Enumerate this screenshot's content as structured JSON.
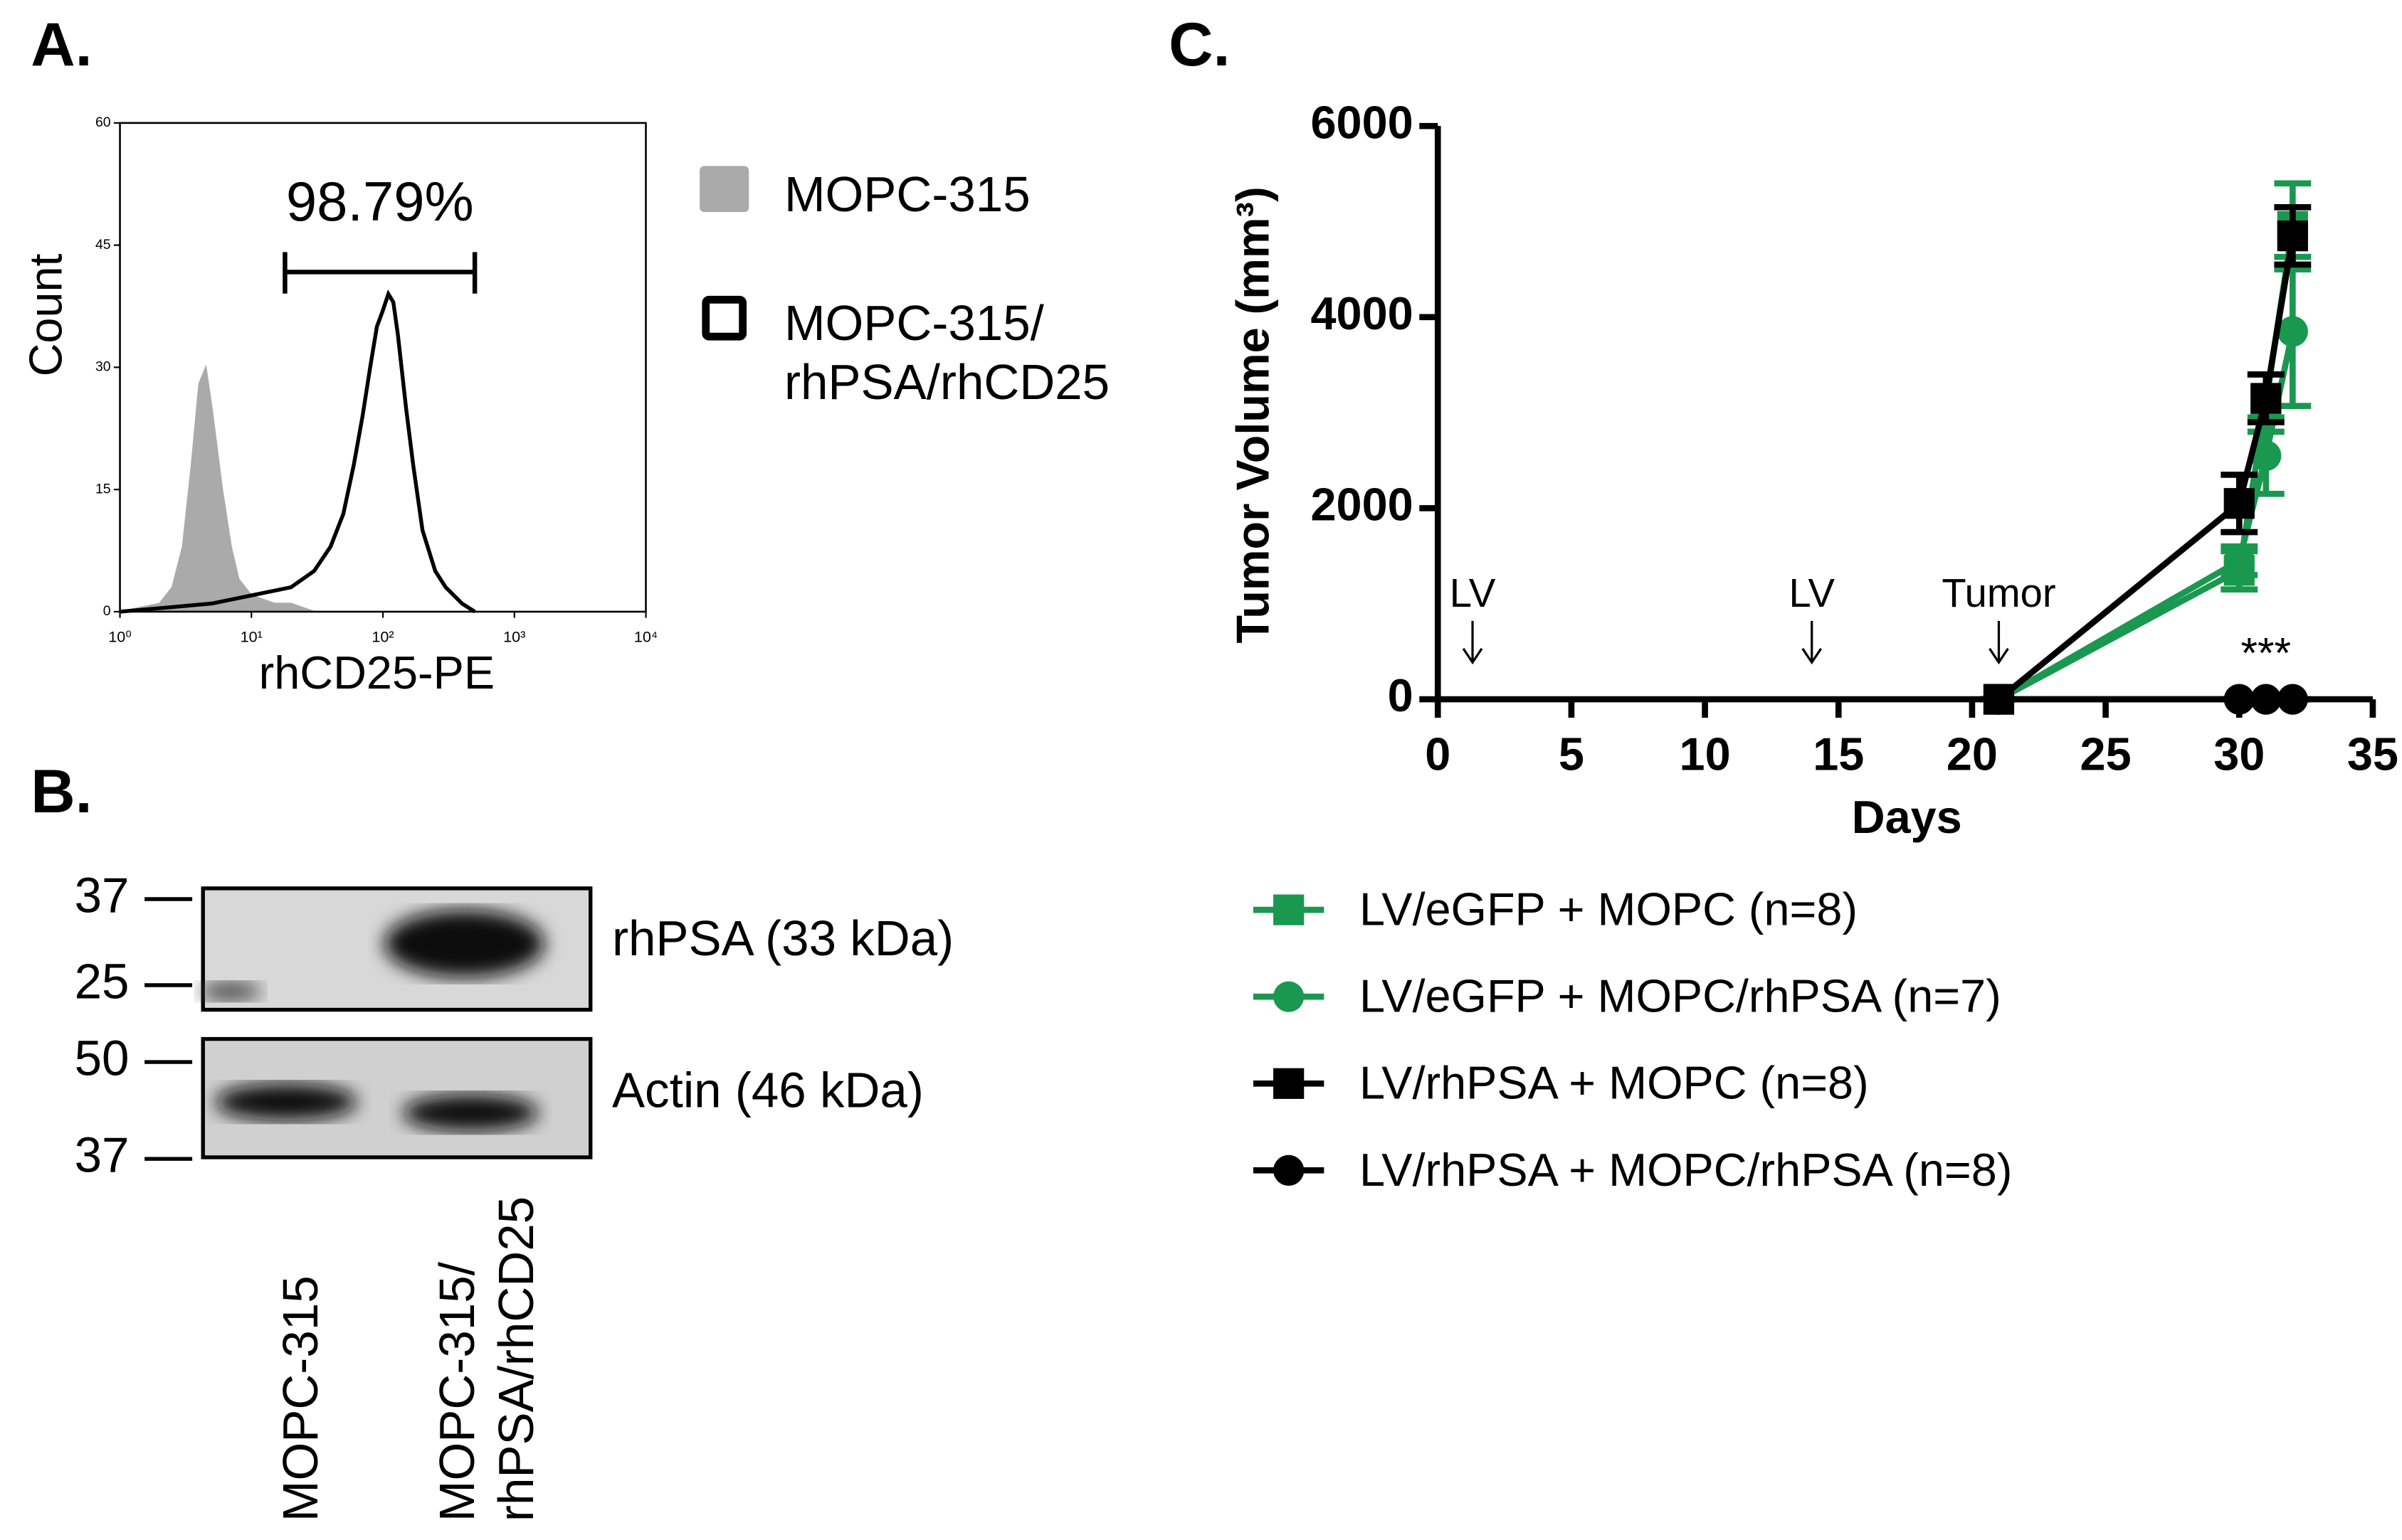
{
  "panel_labels": [
    "A.",
    "B.",
    "C."
  ],
  "chart_data": [
    {
      "type": "histogram-overlay",
      "x_label": "rhCD25-PE",
      "y_label": "Count",
      "log_x": true,
      "xlim": [
        1,
        10000
      ],
      "xticks": [
        {
          "value": 1,
          "label": "10⁰"
        },
        {
          "value": 10,
          "label": "10¹"
        },
        {
          "value": 100,
          "label": "10²"
        },
        {
          "value": 1000,
          "label": "10³"
        },
        {
          "value": 10000,
          "label": "10⁴"
        }
      ],
      "ylim": [
        0,
        60
      ],
      "yticks": [
        0,
        15,
        30,
        45,
        60
      ],
      "gate": [
        18,
        500
      ],
      "gate_label": "98.79%",
      "series": [
        {
          "name": "MOPC-315",
          "color": "#aaaaaa",
          "filled": true,
          "x": [
            1,
            2,
            2.5,
            3,
            3.5,
            4,
            4.5,
            5,
            6,
            7,
            8,
            10,
            15,
            20,
            30
          ],
          "values": [
            0,
            1,
            3,
            8,
            18,
            28,
            30,
            25,
            15,
            8,
            4,
            2,
            1,
            1,
            0
          ]
        },
        {
          "name": "MOPC-315/\nrhPSA/rhCD25",
          "color": "#000000",
          "filled": false,
          "x": [
            1,
            5,
            10,
            20,
            30,
            40,
            50,
            60,
            70,
            80,
            90,
            100,
            110,
            120,
            130,
            150,
            170,
            200,
            250,
            300,
            400,
            500
          ],
          "values": [
            0,
            1,
            2,
            3,
            5,
            8,
            12,
            18,
            24,
            30,
            35,
            37,
            39,
            38,
            34,
            25,
            18,
            10,
            5,
            3,
            1,
            0
          ]
        }
      ]
    },
    {
      "type": "line",
      "x_label": "Days",
      "y_label": "Tumor Volume (mm³)",
      "xlim": [
        0,
        35
      ],
      "xticks": [
        0,
        5,
        10,
        15,
        20,
        25,
        30,
        35
      ],
      "ylim": [
        0,
        6000
      ],
      "yticks": [
        0,
        2000,
        4000,
        6000
      ],
      "annotations": [
        {
          "text": "LV",
          "x": 1.3
        },
        {
          "text": "LV",
          "x": 14
        },
        {
          "text": "Tumor",
          "x": 21
        }
      ],
      "significance": {
        "text": "***",
        "x": 31
      },
      "series": [
        {
          "name": "LV/eGFP + MOPC (n=8)",
          "color": "#1a9850",
          "marker": "square",
          "x": [
            21,
            30,
            31,
            32
          ],
          "values": [
            0,
            1350,
            3100,
            4950
          ],
          "errors": [
            0,
            200,
            300,
            450
          ]
        },
        {
          "name": "LV/eGFP + MOPC/rhPSA (n=7)",
          "color": "#1a9850",
          "marker": "circle",
          "x": [
            21,
            30,
            31,
            32
          ],
          "values": [
            0,
            1450,
            2550,
            3850
          ],
          "errors": [
            0,
            150,
            400,
            780
          ]
        },
        {
          "name": "LV/rhPSA + MOPC (n=8)",
          "color": "#000000",
          "marker": "square",
          "x": [
            21,
            30,
            31,
            32
          ],
          "values": [
            0,
            2050,
            3150,
            4850
          ],
          "errors": [
            0,
            300,
            250,
            300
          ]
        },
        {
          "name": "LV/rhPSA + MOPC/rhPSA (n=8)",
          "color": "#000000",
          "marker": "circle",
          "x": [
            21,
            30,
            31,
            32
          ],
          "values": [
            0,
            0,
            0,
            0
          ],
          "errors": [
            0,
            0,
            0,
            0
          ]
        }
      ]
    }
  ],
  "blot": {
    "markers": [
      37,
      25,
      50,
      37
    ],
    "bands": [
      "rhPSA (33 kDa)",
      "Actin (46 kDa)"
    ],
    "lanes": [
      "MOPC-315",
      "MOPC-315/\nrhPSA/rhCD25"
    ]
  }
}
